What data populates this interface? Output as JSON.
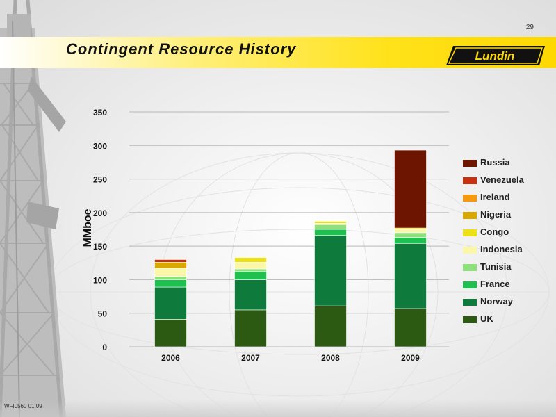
{
  "page_number": "29",
  "title": "Contingent Resource History",
  "logo_text": "Lundin",
  "footer_code": "WFI0560 01.09",
  "chart_data": {
    "type": "bar",
    "stacked": true,
    "title": "",
    "xlabel": "",
    "ylabel": "MMboe",
    "ylim": [
      0,
      350
    ],
    "yticks": [
      0,
      50,
      100,
      150,
      200,
      250,
      300,
      350
    ],
    "grid": true,
    "legend_position": "right",
    "categories": [
      "2006",
      "2007",
      "2008",
      "2009"
    ],
    "series": [
      {
        "name": "UK",
        "color": "#2d5a12",
        "values": [
          41,
          55,
          61,
          57
        ]
      },
      {
        "name": "Norway",
        "color": "#0e7a3c",
        "values": [
          48,
          45,
          105,
          97
        ]
      },
      {
        "name": "France",
        "color": "#1fc050",
        "values": [
          11,
          12,
          9,
          9
        ]
      },
      {
        "name": "Tunisia",
        "color": "#8ee07a",
        "values": [
          5,
          4,
          7,
          7
        ]
      },
      {
        "name": "Indonesia",
        "color": "#faf8a8",
        "values": [
          12,
          10,
          2,
          5
        ]
      },
      {
        "name": "Congo",
        "color": "#ece118",
        "values": [
          0,
          7,
          3,
          2
        ]
      },
      {
        "name": "Nigeria",
        "color": "#d8a800",
        "values": [
          9,
          0,
          0,
          0
        ]
      },
      {
        "name": "Ireland",
        "color": "#f59a10",
        "values": [
          0,
          0,
          0,
          0
        ]
      },
      {
        "name": "Venezuela",
        "color": "#c83010",
        "values": [
          4,
          0,
          0,
          0
        ]
      },
      {
        "name": "Russia",
        "color": "#6e1500",
        "values": [
          0,
          0,
          0,
          116
        ]
      }
    ]
  }
}
